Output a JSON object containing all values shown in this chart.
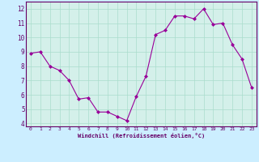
{
  "x": [
    0,
    1,
    2,
    3,
    4,
    5,
    6,
    7,
    8,
    9,
    10,
    11,
    12,
    13,
    14,
    15,
    16,
    17,
    18,
    19,
    20,
    21,
    22,
    23
  ],
  "y": [
    8.9,
    9.0,
    8.0,
    7.7,
    7.0,
    5.7,
    5.8,
    4.8,
    4.8,
    4.5,
    4.2,
    5.9,
    7.3,
    10.2,
    10.5,
    11.5,
    11.5,
    11.3,
    12.0,
    10.9,
    11.0,
    9.5,
    8.5,
    6.5
  ],
  "line_color": "#990099",
  "marker": "D",
  "marker_size": 2.0,
  "bg_color": "#cceeff",
  "grid_color": "#aaddcc",
  "xlabel": "Windchill (Refroidissement éolien,°C)",
  "xlabel_color": "#660066",
  "tick_color": "#660066",
  "ylim": [
    3.8,
    12.5
  ],
  "xlim": [
    -0.5,
    23.5
  ],
  "yticks": [
    4,
    5,
    6,
    7,
    8,
    9,
    10,
    11,
    12
  ],
  "xticks": [
    0,
    1,
    2,
    3,
    4,
    5,
    6,
    7,
    8,
    9,
    10,
    11,
    12,
    13,
    14,
    15,
    16,
    17,
    18,
    19,
    20,
    21,
    22,
    23
  ],
  "spine_color": "#660066",
  "axis_bg": "#d4f0ea"
}
